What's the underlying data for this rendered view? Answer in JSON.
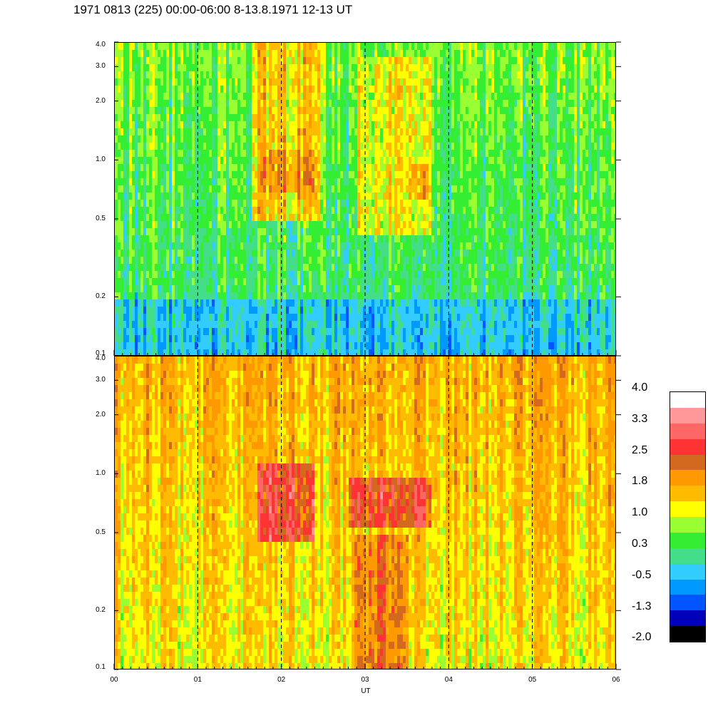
{
  "title": "1971 0813 (225) 00:00-06:00 8-13.8.1971  12-13 UT",
  "chart_data": [
    {
      "type": "heatmap",
      "panel": "top",
      "y_scale": "log",
      "ylim": [
        0.1,
        4.0
      ],
      "y_ticks": [
        "4.0",
        "3.0",
        "2.0",
        "1.0",
        "0.5",
        "0.2",
        "0.1"
      ],
      "y_tick_values": [
        4.0,
        3.0,
        2.0,
        1.0,
        0.5,
        0.2,
        0.1
      ],
      "x_ticks": [
        "00",
        "01",
        "02",
        "03",
        "04",
        "05",
        "06"
      ],
      "x_tick_values": [
        0,
        1,
        2,
        3,
        4,
        5,
        6
      ],
      "xlim": [
        0,
        6
      ],
      "xlabel": "UT",
      "hour_markers": [
        1,
        2,
        3,
        4,
        5
      ],
      "background_level": 0.1,
      "enhancements": [
        {
          "t_start": 1.65,
          "t_end": 2.45,
          "f_low": 0.5,
          "f_high": 4.0,
          "level": 1.4
        },
        {
          "t_start": 2.9,
          "t_end": 3.8,
          "f_low": 0.4,
          "f_high": 3.5,
          "level": 1.2
        },
        {
          "t_start": 1.75,
          "t_end": 2.4,
          "f_low": 0.7,
          "f_high": 1.1,
          "level": 1.9
        },
        {
          "t_start": 3.55,
          "t_end": 3.75,
          "f_low": 0.65,
          "f_high": 0.95,
          "level": 1.9
        }
      ]
    },
    {
      "type": "heatmap",
      "panel": "bottom",
      "y_scale": "log",
      "ylim": [
        0.1,
        4.0
      ],
      "y_ticks": [
        "4.0",
        "3.0",
        "2.0",
        "1.0",
        "0.5",
        "0.2",
        "0.1"
      ],
      "y_tick_values": [
        4.0,
        3.0,
        2.0,
        1.0,
        0.5,
        0.2,
        0.1
      ],
      "x_ticks": [
        "00",
        "01",
        "02",
        "03",
        "04",
        "05",
        "06"
      ],
      "x_tick_values": [
        0,
        1,
        2,
        3,
        4,
        5,
        6
      ],
      "xlim": [
        0,
        6
      ],
      "xlabel": "UT",
      "hour_markers": [
        1,
        2,
        3,
        4,
        5
      ],
      "background_level": 1.4,
      "enhancements": [
        {
          "t_start": 1.7,
          "t_end": 2.4,
          "f_low": 0.45,
          "f_high": 1.1,
          "level": 2.6
        },
        {
          "t_start": 2.8,
          "t_end": 3.8,
          "f_low": 0.55,
          "f_high": 1.0,
          "level": 2.5
        },
        {
          "t_start": 2.85,
          "t_end": 3.5,
          "f_low": 0.1,
          "f_high": 0.5,
          "level": 2.1
        }
      ]
    }
  ],
  "colorbar": {
    "labels": [
      "4.0",
      "3.3",
      "2.5",
      "1.8",
      "1.0",
      "0.3",
      "-0.5",
      "-1.3",
      "-2.0"
    ],
    "colors": [
      "#ffffff",
      "#ff9999",
      "#ff6666",
      "#ff3333",
      "#d2691e",
      "#ff9900",
      "#ffbb00",
      "#ffff00",
      "#99ff33",
      "#33ee33",
      "#44dd88",
      "#33ccff",
      "#0099ff",
      "#0055ff",
      "#0000bb",
      "#000000"
    ]
  }
}
